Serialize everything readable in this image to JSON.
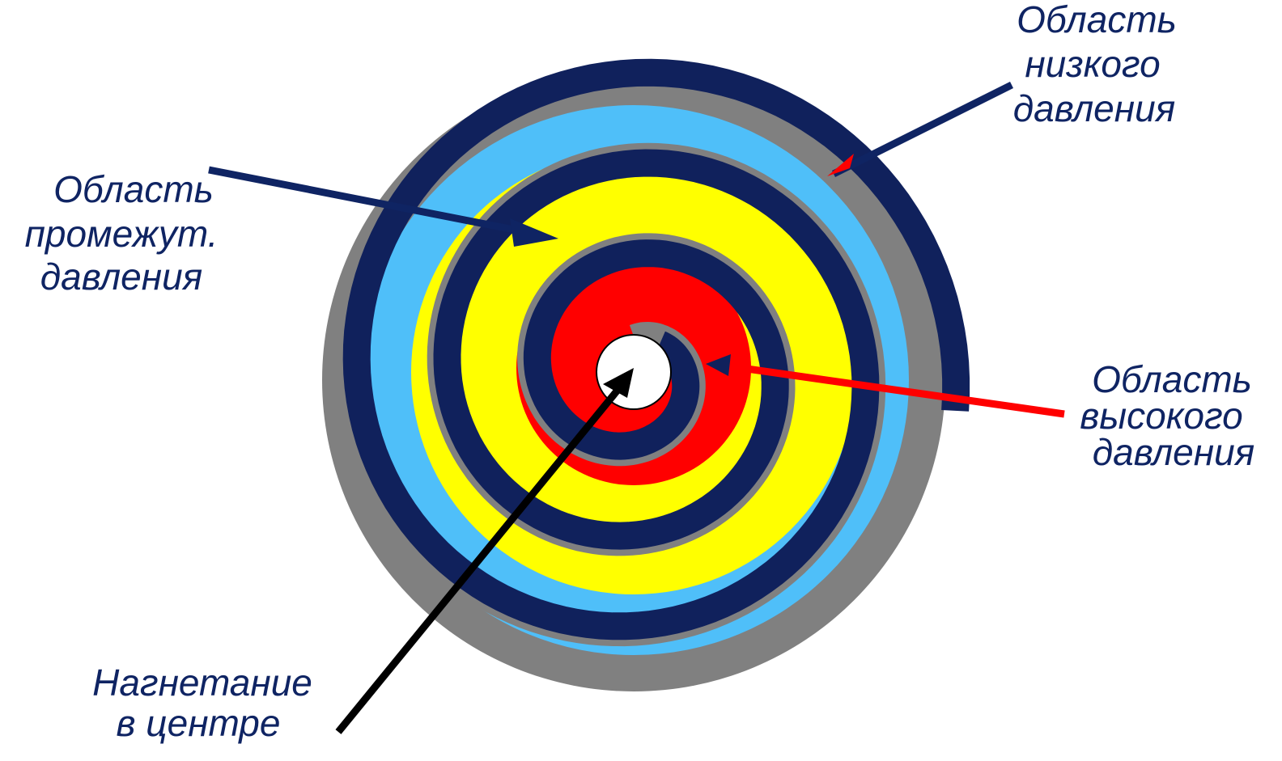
{
  "labels": [
    {
      "lines": [
        "Область",
        "низкого",
        "давления"
      ]
    },
    {
      "lines": [
        "Область",
        "промежут.",
        "давления"
      ]
    },
    {
      "lines": [
        "Область",
        "высокого",
        "давления"
      ]
    },
    {
      "lines": [
        "Нагнетание",
        "в центре"
      ]
    }
  ]
}
